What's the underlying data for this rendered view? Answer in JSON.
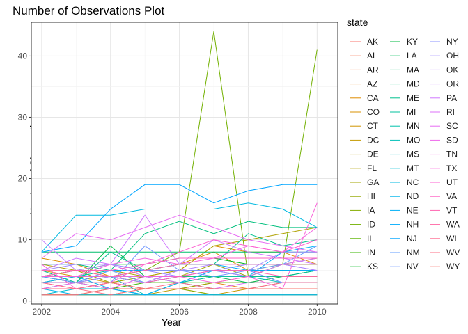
{
  "chart_data": {
    "type": "line",
    "title": "Number of Observations Plot",
    "xlabel": "Year",
    "ylabel": "Number of Observations",
    "legend_title": "state",
    "legend_position": "right",
    "grid": true,
    "xlim": [
      2001.7,
      2010.6
    ],
    "ylim": [
      -0.5,
      45.5
    ],
    "x_ticks": [
      2002,
      2004,
      2006,
      2008,
      2010
    ],
    "y_ticks": [
      0,
      10,
      20,
      30,
      40
    ],
    "x": [
      2002,
      2003,
      2004,
      2005,
      2006,
      2007,
      2008,
      2009,
      2010
    ],
    "series": [
      {
        "name": "AK",
        "values": [
          3,
          2,
          3,
          2,
          2,
          2,
          2,
          2,
          2
        ],
        "color": "#F8766D"
      },
      {
        "name": "AL",
        "values": [
          1,
          1,
          1,
          1,
          1,
          1,
          1,
          1,
          1
        ],
        "color": "#F37B59"
      },
      {
        "name": "AR",
        "values": [
          3,
          3,
          2,
          2,
          2,
          3,
          4,
          4,
          4
        ],
        "color": "#ED8141"
      },
      {
        "name": "AZ",
        "values": [
          2,
          2,
          3,
          2,
          2,
          3,
          2,
          2,
          2
        ],
        "color": "#E7861B"
      },
      {
        "name": "CA",
        "values": [
          7,
          6,
          4,
          5,
          5,
          9,
          8,
          8,
          6
        ],
        "color": "#DF8C00"
      },
      {
        "name": "CO",
        "values": [
          4,
          5,
          4,
          5,
          6,
          8,
          5,
          6,
          7
        ],
        "color": "#D89000"
      },
      {
        "name": "CT",
        "values": [
          5,
          4,
          3,
          4,
          5,
          5,
          5,
          5,
          5
        ],
        "color": "#CF9400"
      },
      {
        "name": "DC",
        "values": [
          1,
          1,
          1,
          2,
          2,
          1,
          2,
          2,
          2
        ],
        "color": "#C49A00"
      },
      {
        "name": "DE",
        "values": [
          1,
          1,
          1,
          1,
          2,
          2,
          2,
          2,
          2
        ],
        "color": "#BB9D00"
      },
      {
        "name": "FL",
        "values": [
          6,
          5,
          5,
          4,
          5,
          9,
          10,
          11,
          12
        ],
        "color": "#AFA100"
      },
      {
        "name": "GA",
        "values": [
          4,
          5,
          3,
          4,
          4,
          6,
          4,
          6,
          6
        ],
        "color": "#A3A500"
      },
      {
        "name": "HI",
        "values": [
          4,
          3,
          3,
          2,
          2,
          3,
          3,
          4,
          4
        ],
        "color": "#95A900"
      },
      {
        "name": "IA",
        "values": [
          1,
          1,
          2,
          2,
          2,
          1,
          1,
          1,
          1
        ],
        "color": "#85AD00"
      },
      {
        "name": "ID",
        "values": [
          4,
          4,
          4,
          5,
          8,
          44,
          4,
          6,
          41
        ],
        "color": "#72B000"
      },
      {
        "name": "IL",
        "values": [
          3,
          4,
          4,
          3,
          3,
          4,
          4,
          4,
          5
        ],
        "color": "#5BB300"
      },
      {
        "name": "IN",
        "values": [
          3,
          3,
          2,
          3,
          3,
          3,
          3,
          3,
          3
        ],
        "color": "#39B600"
      },
      {
        "name": "KS",
        "values": [
          4,
          5,
          6,
          6,
          7,
          7,
          6,
          6,
          6
        ],
        "color": "#00B81F"
      },
      {
        "name": "KY",
        "values": [
          4,
          3,
          9,
          4,
          3,
          2,
          2,
          3,
          3
        ],
        "color": "#00BA42"
      },
      {
        "name": "LA",
        "values": [
          3,
          3,
          4,
          3,
          4,
          4,
          3,
          4,
          5
        ],
        "color": "#00BC59"
      },
      {
        "name": "MA",
        "values": [
          8,
          8,
          8,
          8,
          8,
          8,
          8,
          8,
          8
        ],
        "color": "#00BE6C"
      },
      {
        "name": "MD",
        "values": [
          6,
          6,
          5,
          11,
          13,
          11,
          13,
          12,
          12
        ],
        "color": "#00BF7D"
      },
      {
        "name": "ME",
        "values": [
          5,
          3,
          8,
          5,
          6,
          6,
          11,
          9,
          10
        ],
        "color": "#00C08D"
      },
      {
        "name": "MI",
        "values": [
          4,
          4,
          4,
          4,
          4,
          5,
          4,
          4,
          5
        ],
        "color": "#00C19C"
      },
      {
        "name": "MN",
        "values": [
          4,
          4,
          5,
          5,
          5,
          5,
          5,
          5,
          5
        ],
        "color": "#00C1AA"
      },
      {
        "name": "MO",
        "values": [
          3,
          3,
          4,
          1,
          3,
          4,
          4,
          3,
          3
        ],
        "color": "#00C0B8"
      },
      {
        "name": "MS",
        "values": [
          2,
          3,
          2,
          1,
          3,
          2,
          2,
          2,
          2
        ],
        "color": "#00BFC4"
      },
      {
        "name": "MT",
        "values": [
          1,
          2,
          2,
          1,
          1,
          1,
          1,
          1,
          1
        ],
        "color": "#00BCD2"
      },
      {
        "name": "NC",
        "values": [
          8,
          14,
          14,
          15,
          15,
          15,
          16,
          15,
          12
        ],
        "color": "#00B9E0"
      },
      {
        "name": "ND",
        "values": [
          2,
          1,
          1,
          1,
          1,
          1,
          1,
          1,
          1
        ],
        "color": "#00B5EB"
      },
      {
        "name": "NE",
        "values": [
          3,
          4,
          2,
          1,
          3,
          5,
          4,
          8,
          9
        ],
        "color": "#00B0F6"
      },
      {
        "name": "NH",
        "values": [
          4,
          3,
          5,
          5,
          6,
          6,
          5,
          5,
          5
        ],
        "color": "#00ACFC"
      },
      {
        "name": "NJ",
        "values": [
          8,
          9,
          15,
          19,
          19,
          16,
          18,
          19,
          19
        ],
        "color": "#00A5FF"
      },
      {
        "name": "NM",
        "values": [
          4,
          3,
          5,
          3,
          4,
          5,
          5,
          6,
          9
        ],
        "color": "#619CFF"
      },
      {
        "name": "NV",
        "values": [
          3,
          3,
          3,
          9,
          5,
          4,
          5,
          3,
          3
        ],
        "color": "#6F96FF"
      },
      {
        "name": "NY",
        "values": [
          6,
          6,
          6,
          5,
          5,
          5,
          6,
          6,
          5
        ],
        "color": "#8B93FF"
      },
      {
        "name": "OH",
        "values": [
          5,
          6,
          6,
          5,
          4,
          5,
          5,
          8,
          8
        ],
        "color": "#A08DFF"
      },
      {
        "name": "OK",
        "values": [
          3,
          3,
          4,
          3,
          5,
          6,
          6,
          6,
          5
        ],
        "color": "#B385FF"
      },
      {
        "name": "OR",
        "values": [
          10,
          5,
          6,
          4,
          4,
          5,
          4,
          6,
          7
        ],
        "color": "#C37CFF"
      },
      {
        "name": "PA",
        "values": [
          5,
          7,
          6,
          14,
          6,
          10,
          8,
          7,
          6
        ],
        "color": "#D078FF"
      },
      {
        "name": "RI",
        "values": [
          1,
          1,
          2,
          4,
          3,
          2,
          3,
          3,
          3
        ],
        "color": "#DC71FA"
      },
      {
        "name": "SC",
        "values": [
          7,
          11,
          10,
          12,
          14,
          12,
          10,
          9,
          8
        ],
        "color": "#E76BF3"
      },
      {
        "name": "SD",
        "values": [
          2,
          3,
          2,
          2,
          2,
          2,
          2,
          2,
          2
        ],
        "color": "#EF67EB"
      },
      {
        "name": "TN",
        "values": [
          4,
          4,
          6,
          7,
          6,
          7,
          9,
          8,
          12
        ],
        "color": "#F564E3"
      },
      {
        "name": "TX",
        "values": [
          4,
          4,
          4,
          4,
          4,
          3,
          4,
          2,
          16
        ],
        "color": "#FA62D9"
      },
      {
        "name": "UT",
        "values": [
          6,
          2,
          3,
          6,
          8,
          10,
          9,
          8,
          10
        ],
        "color": "#FD61D1"
      },
      {
        "name": "VA",
        "values": [
          4,
          5,
          5,
          6,
          7,
          7,
          7,
          7,
          7
        ],
        "color": "#FF62C4"
      },
      {
        "name": "VT",
        "values": [
          3,
          3,
          3,
          3,
          4,
          5,
          5,
          4,
          4
        ],
        "color": "#FF64B0"
      },
      {
        "name": "WA",
        "values": [
          5,
          5,
          4,
          5,
          6,
          6,
          6,
          6,
          6
        ],
        "color": "#FF67A4"
      },
      {
        "name": "WI",
        "values": [
          3,
          2,
          3,
          2,
          2,
          2,
          2,
          3,
          3
        ],
        "color": "#FF6C91"
      },
      {
        "name": "WV",
        "values": [
          2,
          2,
          1,
          2,
          3,
          2,
          2,
          3,
          3
        ],
        "color": "#FD6F86"
      },
      {
        "name": "WY",
        "values": [
          1,
          1,
          2,
          2,
          2,
          2,
          2,
          2,
          2
        ],
        "color": "#F8766D"
      }
    ]
  }
}
